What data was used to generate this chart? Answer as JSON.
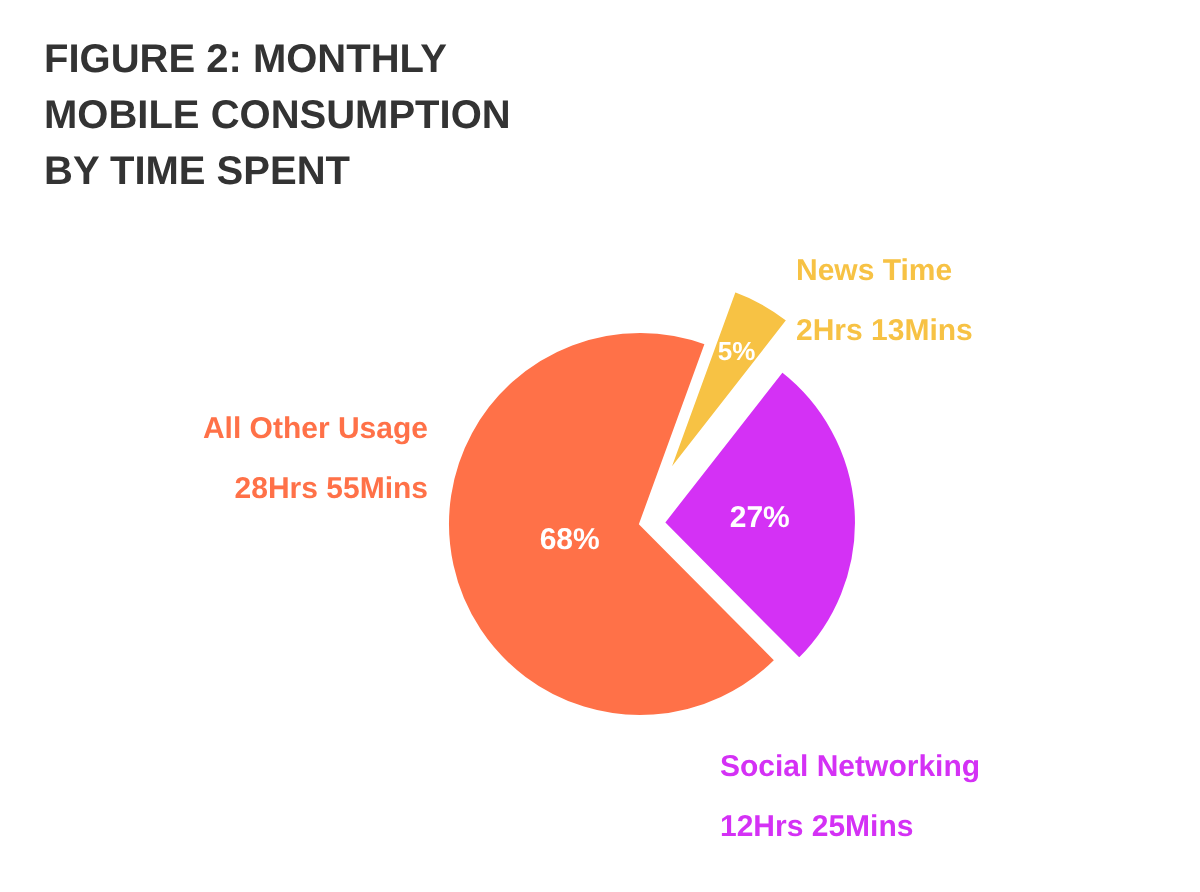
{
  "chart_data": {
    "type": "pie",
    "title": "FIGURE 2: MONTHLY MOBILE CONSUMPTION BY TIME SPENT",
    "categories": [
      "News Time",
      "Social Networking",
      "All Other Usage"
    ],
    "values": [
      5,
      27,
      68
    ],
    "colors": [
      "#f7c244",
      "#d431f5",
      "#ff7148"
    ],
    "value_labels": [
      "5%",
      "27%",
      "68%"
    ],
    "annotations": [
      "2Hrs 13Mins",
      "12Hrs 25Mins",
      "28Hrs 55Mins"
    ]
  }
}
